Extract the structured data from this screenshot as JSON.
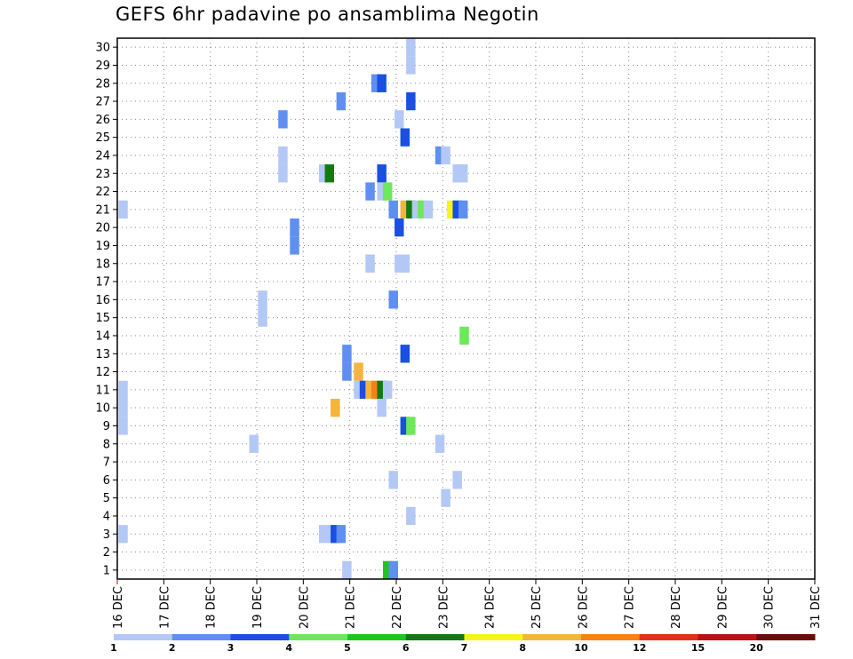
{
  "chart_data": {
    "type": "heatmap",
    "title": "GEFS 6hr padavine po ansamblima Negotin",
    "x_tick_labels": [
      "16 DEC",
      "17 DEC",
      "18 DEC",
      "19 DEC",
      "20 DEC",
      "21 DEC",
      "22 DEC",
      "23 DEC",
      "24 DEC",
      "25 DEC",
      "26 DEC",
      "27 DEC",
      "28 DEC",
      "29 DEC",
      "30 DEC",
      "31 DEC"
    ],
    "y_tick_labels": [
      "1",
      "2",
      "3",
      "4",
      "5",
      "6",
      "7",
      "8",
      "9",
      "10",
      "11",
      "12",
      "13",
      "14",
      "15",
      "16",
      "17",
      "18",
      "19",
      "20",
      "21",
      "22",
      "23",
      "24",
      "25",
      "26",
      "27",
      "28",
      "29",
      "30"
    ],
    "xlim": [
      0,
      60
    ],
    "ylim": [
      0.5,
      30.5
    ],
    "grid": true,
    "colorbar": {
      "labels": [
        "1",
        "2",
        "3",
        "4",
        "5",
        "6",
        "7",
        "8",
        "10",
        "12",
        "15",
        "20"
      ],
      "colors": [
        "#b4c8f5",
        "#5f8ff0",
        "#1a4fe0",
        "#6ce85a",
        "#1fc41f",
        "#137a13",
        "#f5f51a",
        "#f5b43c",
        "#f58214",
        "#e03214",
        "#b41414",
        "#6e0a0a"
      ]
    },
    "cells": [
      {
        "x": 0.5,
        "y": 21,
        "c": 1
      },
      {
        "x": 0.5,
        "y": 11,
        "c": 1
      },
      {
        "x": 0.5,
        "y": 10,
        "c": 1
      },
      {
        "x": 0.5,
        "y": 9,
        "c": 1
      },
      {
        "x": 0.5,
        "y": 3,
        "c": 1
      },
      {
        "x": 12.5,
        "y": 16,
        "c": 1
      },
      {
        "x": 12.5,
        "y": 15,
        "c": 1
      },
      {
        "x": 11.75,
        "y": 8,
        "c": 1
      },
      {
        "x": 14.25,
        "y": 26,
        "c": 2
      },
      {
        "x": 14.25,
        "y": 24,
        "c": 1
      },
      {
        "x": 14.25,
        "y": 23,
        "c": 1
      },
      {
        "x": 15.25,
        "y": 20,
        "c": 2
      },
      {
        "x": 15.25,
        "y": 19,
        "c": 2
      },
      {
        "x": 17.75,
        "y": 23,
        "c": 1
      },
      {
        "x": 18.25,
        "y": 23,
        "c": 6
      },
      {
        "x": 19.25,
        "y": 27,
        "c": 2
      },
      {
        "x": 18.75,
        "y": 10,
        "c": 8
      },
      {
        "x": 17.75,
        "y": 3,
        "c": 1
      },
      {
        "x": 18.25,
        "y": 3,
        "c": 1
      },
      {
        "x": 18.75,
        "y": 3,
        "c": 3
      },
      {
        "x": 19.25,
        "y": 3,
        "c": 2
      },
      {
        "x": 19.75,
        "y": 13,
        "c": 2
      },
      {
        "x": 19.75,
        "y": 12,
        "c": 2
      },
      {
        "x": 20.75,
        "y": 12,
        "c": 8
      },
      {
        "x": 20.75,
        "y": 11,
        "c": 1
      },
      {
        "x": 21.25,
        "y": 11,
        "c": 3
      },
      {
        "x": 21.75,
        "y": 11,
        "c": 8
      },
      {
        "x": 22.25,
        "y": 11,
        "c": 9
      },
      {
        "x": 22.75,
        "y": 11,
        "c": 6
      },
      {
        "x": 23.25,
        "y": 11,
        "c": 1
      },
      {
        "x": 19.75,
        "y": 1,
        "c": 1
      },
      {
        "x": 21.75,
        "y": 22,
        "c": 2
      },
      {
        "x": 21.75,
        "y": 18,
        "c": 1
      },
      {
        "x": 22.25,
        "y": 28,
        "c": 2
      },
      {
        "x": 22.75,
        "y": 28,
        "c": 3
      },
      {
        "x": 22.75,
        "y": 23,
        "c": 3
      },
      {
        "x": 22.75,
        "y": 22,
        "c": 1
      },
      {
        "x": 23.25,
        "y": 22,
        "c": 4
      },
      {
        "x": 22.75,
        "y": 10,
        "c": 1
      },
      {
        "x": 23.25,
        "y": 1,
        "c": 5
      },
      {
        "x": 23.75,
        "y": 1,
        "c": 2
      },
      {
        "x": 23.75,
        "y": 21,
        "c": 2
      },
      {
        "x": 23.75,
        "y": 16,
        "c": 2
      },
      {
        "x": 23.75,
        "y": 6,
        "c": 1
      },
      {
        "x": 24.25,
        "y": 26,
        "c": 1
      },
      {
        "x": 24.25,
        "y": 20,
        "c": 3
      },
      {
        "x": 24.25,
        "y": 18,
        "c": 1
      },
      {
        "x": 24.75,
        "y": 18,
        "c": 1
      },
      {
        "x": 24.75,
        "y": 25,
        "c": 3
      },
      {
        "x": 24.75,
        "y": 21,
        "c": 8
      },
      {
        "x": 25.25,
        "y": 21,
        "c": 6
      },
      {
        "x": 25.75,
        "y": 21,
        "c": 1
      },
      {
        "x": 26.25,
        "y": 21,
        "c": 4
      },
      {
        "x": 26.75,
        "y": 21,
        "c": 1
      },
      {
        "x": 24.75,
        "y": 13,
        "c": 3
      },
      {
        "x": 24.75,
        "y": 9,
        "c": 3
      },
      {
        "x": 25.25,
        "y": 9,
        "c": 4
      },
      {
        "x": 25.25,
        "y": 30,
        "c": 1
      },
      {
        "x": 25.25,
        "y": 29,
        "c": 1
      },
      {
        "x": 25.25,
        "y": 27,
        "c": 3
      },
      {
        "x": 25.25,
        "y": 4,
        "c": 1
      },
      {
        "x": 27.75,
        "y": 24,
        "c": 2
      },
      {
        "x": 28.25,
        "y": 24,
        "c": 1
      },
      {
        "x": 27.75,
        "y": 8,
        "c": 1
      },
      {
        "x": 28.25,
        "y": 5,
        "c": 1
      },
      {
        "x": 29.25,
        "y": 23,
        "c": 1
      },
      {
        "x": 29.75,
        "y": 23,
        "c": 1
      },
      {
        "x": 28.75,
        "y": 21,
        "c": 7
      },
      {
        "x": 29.25,
        "y": 21,
        "c": 3
      },
      {
        "x": 29.75,
        "y": 21,
        "c": 2
      },
      {
        "x": 29.25,
        "y": 6,
        "c": 1
      },
      {
        "x": 29.85,
        "y": 14,
        "c": 4
      }
    ]
  }
}
